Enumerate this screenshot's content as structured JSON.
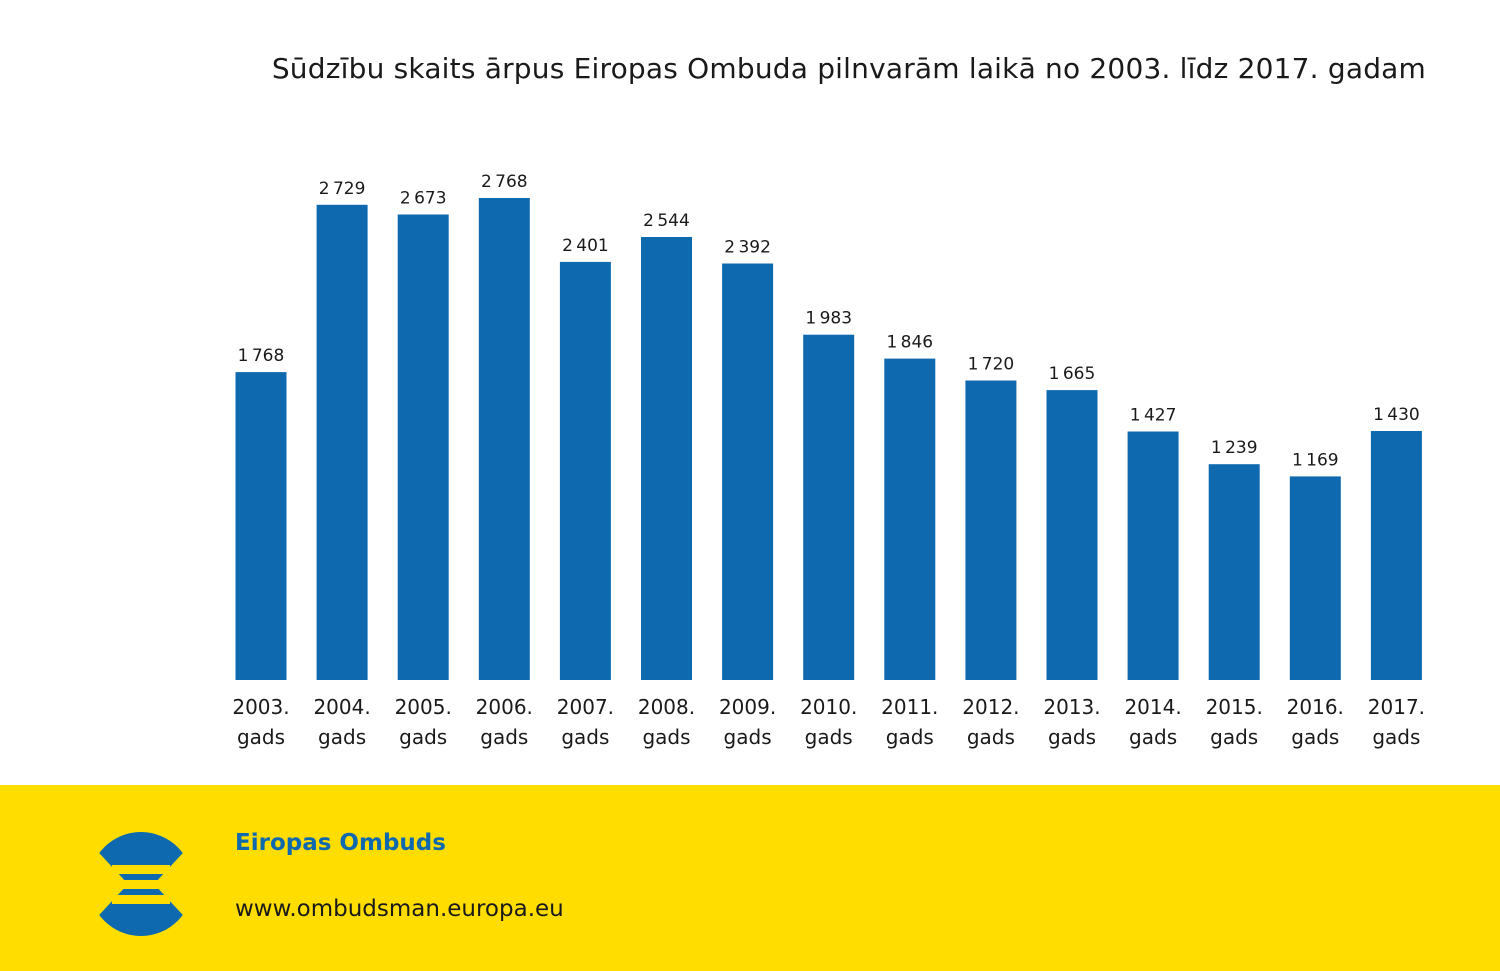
{
  "colors": {
    "bar": "#0F69AF",
    "footer_background": "#FFDD00",
    "brand_text": "#0F69AF",
    "text": "#1a1a1a"
  },
  "chart_data": {
    "type": "bar",
    "title": "Sūdzību skaits ārpus Eiropas Ombuda pilnvarām laikā no 2003. līdz 2017. gadam",
    "xlabel": "",
    "ylabel": "",
    "ylim": [
      0,
      2768
    ],
    "grid": false,
    "legend": "none",
    "categories": [
      [
        "2003.",
        "gads"
      ],
      [
        "2004.",
        "gads"
      ],
      [
        "2005.",
        "gads"
      ],
      [
        "2006.",
        "gads"
      ],
      [
        "2007.",
        "gads"
      ],
      [
        "2008.",
        "gads"
      ],
      [
        "2009.",
        "gads"
      ],
      [
        "2010.",
        "gads"
      ],
      [
        "2011.",
        "gads"
      ],
      [
        "2012.",
        "gads"
      ],
      [
        "2013.",
        "gads"
      ],
      [
        "2014.",
        "gads"
      ],
      [
        "2015.",
        "gads"
      ],
      [
        "2016.",
        "gads"
      ],
      [
        "2017.",
        "gads"
      ]
    ],
    "values": [
      1768,
      2729,
      2673,
      2768,
      2401,
      2544,
      2392,
      1983,
      1846,
      1720,
      1665,
      1427,
      1239,
      1169,
      1430
    ],
    "value_labels": [
      "1768",
      "2729",
      "2673",
      "2768",
      "2401",
      "2544",
      "2392",
      "1983",
      "1846",
      "1720",
      "1665",
      "1427",
      "1239",
      "1169",
      "1430"
    ]
  },
  "footer": {
    "logo_icon": "european-ombudsman-logo-icon",
    "org_name": "Eiropas Ombuds",
    "url": "www.ombudsman.europa.eu"
  }
}
